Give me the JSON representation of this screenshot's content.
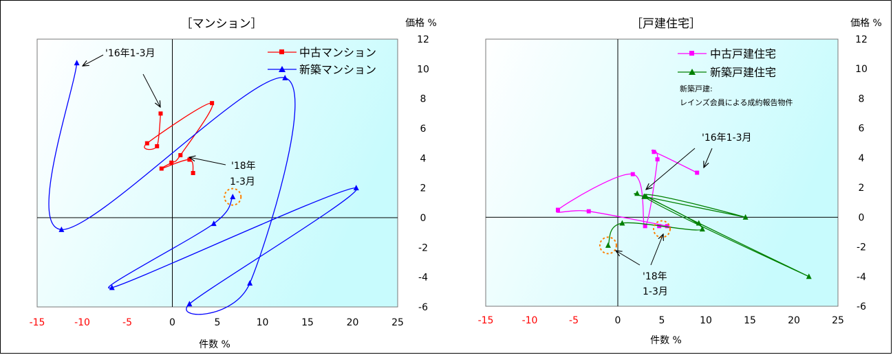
{
  "chart_data": [
    {
      "type": "line",
      "title": "［マンション］",
      "xlabel": "件数 %",
      "ylabel": "価格 %",
      "xlim": [
        -15,
        25
      ],
      "ylim": [
        -6,
        12
      ],
      "x_ticks": [
        "-15",
        "-10",
        "-5",
        "0",
        "5",
        "10",
        "15",
        "20",
        "25"
      ],
      "y_ticks": [
        "12",
        "10",
        "8",
        "6",
        "4",
        "2",
        "0",
        "-2",
        "-4",
        "-6"
      ],
      "grid": false,
      "legend_position": "top-right",
      "series": [
        {
          "name": "中古マンション",
          "color": "#ff0000",
          "marker": "square",
          "points": [
            [
              -1.3,
              7.0
            ],
            [
              -1.7,
              4.8
            ],
            [
              -2.8,
              5.0
            ],
            [
              4.4,
              7.7
            ],
            [
              0.9,
              4.2
            ],
            [
              -0.1,
              3.7
            ],
            [
              -1.2,
              3.3
            ],
            [
              1.9,
              3.9
            ],
            [
              2.3,
              3.0
            ]
          ]
        },
        {
          "name": "新築マンション",
          "color": "#0000ff",
          "marker": "triangle",
          "points": [
            [
              -10.6,
              10.4
            ],
            [
              -12.3,
              -0.8
            ],
            [
              12.5,
              9.4
            ],
            [
              8.6,
              -4.4
            ],
            [
              1.9,
              -5.8
            ],
            [
              20.4,
              2.0
            ],
            [
              -6.7,
              -4.7
            ],
            [
              4.6,
              -0.4
            ],
            [
              6.7,
              1.4
            ]
          ]
        }
      ],
      "annotations": [
        "'16年1-3月",
        "'18年",
        "1-3月"
      ]
    },
    {
      "type": "line",
      "title": "［戸建住宅］",
      "xlabel": "件数 %",
      "ylabel": "価格 %",
      "xlim": [
        -15,
        25
      ],
      "ylim": [
        -6,
        12
      ],
      "x_ticks": [
        "-15",
        "-10",
        "-5",
        "0",
        "5",
        "10",
        "15",
        "20",
        "25"
      ],
      "y_ticks": [
        "12",
        "10",
        "8",
        "6",
        "4",
        "2",
        "0",
        "-2",
        "-4",
        "-6"
      ],
      "grid": false,
      "legend_position": "top-right",
      "series": [
        {
          "name": "中古戸建住宅",
          "color": "#ff00ff",
          "marker": "square",
          "points": [
            [
              9.0,
              3.0
            ],
            [
              4.1,
              4.4
            ],
            [
              4.5,
              3.9
            ],
            [
              3.1,
              -0.6
            ],
            [
              1.7,
              2.9
            ],
            [
              -6.8,
              0.5
            ],
            [
              -3.3,
              0.4
            ],
            [
              5.6,
              -0.6
            ],
            [
              4.7,
              -0.6
            ]
          ]
        },
        {
          "name": "新築戸建住宅",
          "color": "#008000",
          "marker": "triangle",
          "points": [
            [
              2.2,
              1.6
            ],
            [
              3.0,
              1.4
            ],
            [
              14.5,
              0.0
            ],
            [
              3.0,
              1.4
            ],
            [
              21.7,
              -4.0
            ],
            [
              9.2,
              -0.4
            ],
            [
              3.2,
              1.4
            ],
            [
              9.6,
              -0.8
            ],
            [
              0.5,
              -0.4
            ],
            [
              -1.1,
              -1.9
            ]
          ]
        }
      ],
      "annotations": [
        "新築戸建:",
        "レインズ会員による成約報告物件",
        "'16年1-3月",
        "'18年",
        "1-3月"
      ]
    }
  ],
  "texts": {
    "left_title": "［マンション］",
    "left_ylabel": "価格 %",
    "left_xlabel": "件数 %",
    "left_legend1": "中古マンション",
    "left_legend2": "新築マンション",
    "left_ann1": "'16年1-3月",
    "left_ann2a": "'18年",
    "left_ann2b": "1-3月",
    "right_title": "［戸建住宅］",
    "right_ylabel": "価格 %",
    "right_xlabel": "件数 %",
    "right_legend1": "中古戸建住宅",
    "right_legend2": "新築戸建住宅",
    "right_note1": "新築戸建:",
    "right_note2": "レインズ会員による成約報告物件",
    "right_ann1": "'16年1-3月",
    "right_ann2a": "'18年",
    "right_ann2b": "1-3月"
  },
  "colors": {
    "plot_gradient_start": "#ffffff",
    "plot_gradient_end": "#c8fbfd",
    "negative_x_tick": "#ff0000",
    "highlight_circle": "#ff8000"
  }
}
